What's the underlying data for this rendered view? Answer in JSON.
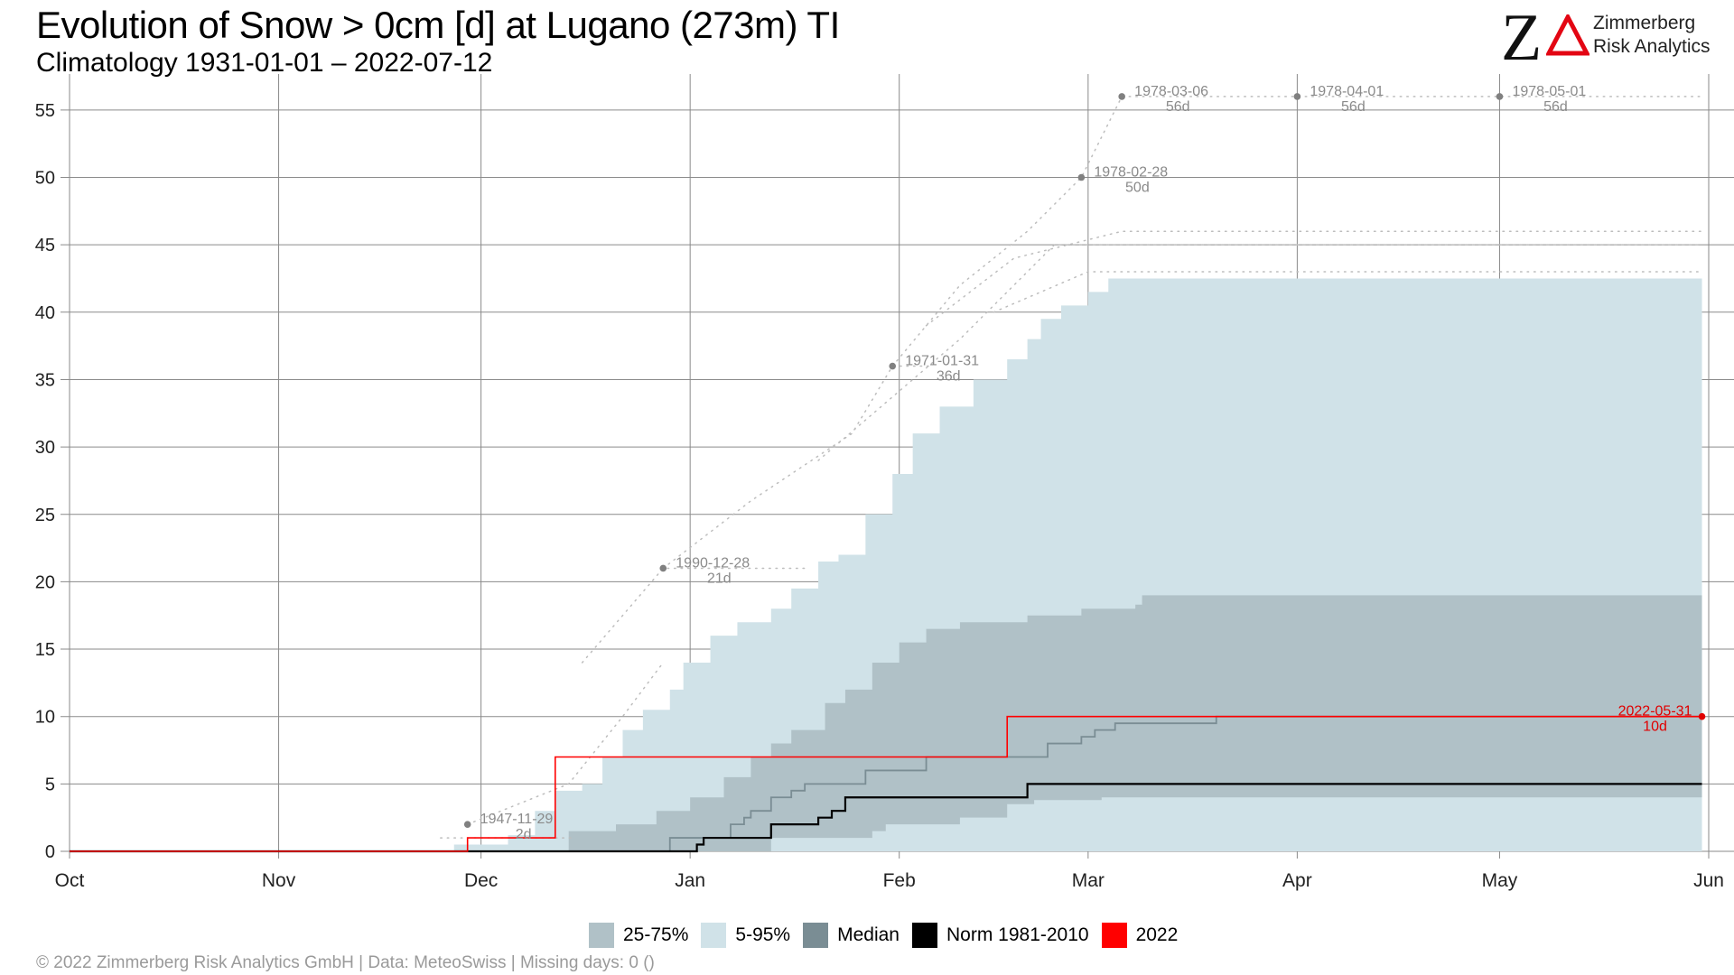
{
  "title": "Evolution of Snow > 0cm [d] at Lugano (273m) TI",
  "subtitle": "Climatology 1931-01-01 – 2022-07-12",
  "logo": {
    "name_line1": "Zimmerberg",
    "name_line2": "Risk Analytics",
    "letter": "Z",
    "accent_color": "#e30613"
  },
  "footer": "©  2022 Zimmerberg Risk Analytics GmbH | Data: MeteoSwiss | Missing days: 0 ()",
  "legend": [
    {
      "label": "25-75%",
      "color": "#b0c1c7"
    },
    {
      "label": "5-95%",
      "color": "#d0e2e8"
    },
    {
      "label": "Median",
      "color": "#7a8d94"
    },
    {
      "label": "Norm 1981-2010",
      "color": "#000000"
    },
    {
      "label": "2022",
      "color": "#ff0000"
    }
  ],
  "chart_data": {
    "type": "area",
    "x_axis": {
      "type": "date",
      "range": [
        "2021-10-01",
        "2022-06-01"
      ],
      "tick_labels": [
        "Oct",
        "Nov",
        "Dec",
        "Jan",
        "Feb",
        "Mar",
        "Apr",
        "May",
        "Jun"
      ],
      "tick_dates": [
        "2021-10-01",
        "2021-11-01",
        "2021-12-01",
        "2022-01-01",
        "2022-02-01",
        "2022-03-01",
        "2022-04-01",
        "2022-05-01",
        "2022-06-01"
      ]
    },
    "y_axis": {
      "range": [
        0,
        57
      ],
      "ticks": [
        0,
        5,
        10,
        15,
        20,
        25,
        30,
        35,
        40,
        45,
        50,
        55
      ]
    },
    "grid": true,
    "legend_position": "bottom",
    "series": [
      {
        "name": "5-95%",
        "kind": "band",
        "color": "#d0e2e8",
        "lower": [
          [
            "2021-10-01",
            0
          ],
          [
            "2022-05-31",
            0
          ]
        ],
        "upper": [
          [
            "2021-10-01",
            0
          ],
          [
            "2021-11-26",
            0
          ],
          [
            "2021-11-27",
            0.5
          ],
          [
            "2021-12-05",
            1.2
          ],
          [
            "2021-12-09",
            3
          ],
          [
            "2021-12-12",
            4.5
          ],
          [
            "2021-12-16",
            5
          ],
          [
            "2021-12-19",
            7
          ],
          [
            "2021-12-22",
            9
          ],
          [
            "2021-12-25",
            10.5
          ],
          [
            "2021-12-29",
            12
          ],
          [
            "2021-12-31",
            14
          ],
          [
            "2022-01-04",
            16
          ],
          [
            "2022-01-08",
            17
          ],
          [
            "2022-01-13",
            18
          ],
          [
            "2022-01-16",
            19.5
          ],
          [
            "2022-01-20",
            21.5
          ],
          [
            "2022-01-23",
            22
          ],
          [
            "2022-01-27",
            25
          ],
          [
            "2022-01-31",
            28
          ],
          [
            "2022-02-03",
            31
          ],
          [
            "2022-02-07",
            33
          ],
          [
            "2022-02-12",
            35
          ],
          [
            "2022-02-17",
            36.5
          ],
          [
            "2022-02-20",
            38
          ],
          [
            "2022-02-22",
            39.5
          ],
          [
            "2022-02-25",
            40.5
          ],
          [
            "2022-03-01",
            41.5
          ],
          [
            "2022-03-04",
            42.5
          ],
          [
            "2022-05-31",
            42.5
          ]
        ]
      },
      {
        "name": "25-75%",
        "kind": "band",
        "color": "#b0c1c7",
        "lower": [
          [
            "2021-10-01",
            0
          ],
          [
            "2022-01-13",
            0
          ],
          [
            "2022-01-14",
            1
          ],
          [
            "2022-01-28",
            1
          ],
          [
            "2022-01-30",
            1.5
          ],
          [
            "2022-02-10",
            2
          ],
          [
            "2022-02-17",
            2.5
          ],
          [
            "2022-02-21",
            3.5
          ],
          [
            "2022-03-03",
            3.8
          ],
          [
            "2022-03-17",
            4
          ],
          [
            "2022-05-31",
            4
          ]
        ],
        "upper": [
          [
            "2021-10-01",
            0
          ],
          [
            "2021-12-13",
            0
          ],
          [
            "2021-12-14",
            1.5
          ],
          [
            "2021-12-21",
            2
          ],
          [
            "2021-12-27",
            3
          ],
          [
            "2022-01-01",
            4
          ],
          [
            "2022-01-06",
            5.5
          ],
          [
            "2022-01-10",
            7
          ],
          [
            "2022-01-13",
            8
          ],
          [
            "2022-01-16",
            9
          ],
          [
            "2022-01-21",
            11
          ],
          [
            "2022-01-24",
            12
          ],
          [
            "2022-01-28",
            14
          ],
          [
            "2022-02-01",
            15.5
          ],
          [
            "2022-02-05",
            16.5
          ],
          [
            "2022-02-10",
            17
          ],
          [
            "2022-02-20",
            17.5
          ],
          [
            "2022-02-28",
            18
          ],
          [
            "2022-03-08",
            18.3
          ],
          [
            "2022-03-09",
            19
          ],
          [
            "2022-05-31",
            19
          ]
        ]
      },
      {
        "name": "Median",
        "kind": "line",
        "color": "#7a8d94",
        "points": [
          [
            "2021-10-01",
            0
          ],
          [
            "2021-12-28",
            0
          ],
          [
            "2021-12-29",
            1
          ],
          [
            "2022-01-05",
            1
          ],
          [
            "2022-01-07",
            2
          ],
          [
            "2022-01-09",
            2.5
          ],
          [
            "2022-01-10",
            3
          ],
          [
            "2022-01-13",
            4
          ],
          [
            "2022-01-16",
            4.5
          ],
          [
            "2022-01-18",
            5
          ],
          [
            "2022-01-25",
            5
          ],
          [
            "2022-01-27",
            6
          ],
          [
            "2022-02-03",
            6
          ],
          [
            "2022-02-05",
            7
          ],
          [
            "2022-02-20",
            7
          ],
          [
            "2022-02-23",
            8
          ],
          [
            "2022-02-28",
            8.5
          ],
          [
            "2022-03-02",
            9
          ],
          [
            "2022-03-05",
            9.5
          ],
          [
            "2022-03-19",
            9.5
          ],
          [
            "2022-03-20",
            10
          ],
          [
            "2022-05-31",
            10
          ]
        ]
      },
      {
        "name": "Norm 1981-2010",
        "kind": "line",
        "color": "#000000",
        "points": [
          [
            "2021-10-01",
            0
          ],
          [
            "2022-01-01",
            0
          ],
          [
            "2022-01-02",
            0.5
          ],
          [
            "2022-01-03",
            1
          ],
          [
            "2022-01-12",
            1
          ],
          [
            "2022-01-13",
            2
          ],
          [
            "2022-01-18",
            2
          ],
          [
            "2022-01-20",
            2.5
          ],
          [
            "2022-01-22",
            3
          ],
          [
            "2022-01-24",
            4
          ],
          [
            "2022-02-17",
            4
          ],
          [
            "2022-02-20",
            5
          ],
          [
            "2022-05-31",
            5
          ]
        ]
      },
      {
        "name": "2022",
        "kind": "line",
        "color": "#ff0000",
        "points": [
          [
            "2021-10-01",
            0
          ],
          [
            "2021-11-28",
            0
          ],
          [
            "2021-11-29",
            1
          ],
          [
            "2021-12-07",
            1
          ],
          [
            "2021-12-12",
            7
          ],
          [
            "2022-02-14",
            7
          ],
          [
            "2022-02-17",
            10
          ],
          [
            "2022-05-31",
            10
          ]
        ]
      }
    ],
    "record_traces": [
      {
        "points": [
          [
            "2021-11-25",
            1
          ],
          [
            "2021-12-15",
            1
          ]
        ]
      },
      {
        "points": [
          [
            "2021-11-29",
            2
          ],
          [
            "2021-12-14",
            5
          ],
          [
            "2021-12-22",
            10
          ],
          [
            "2021-12-28",
            14
          ]
        ]
      },
      {
        "points": [
          [
            "2021-12-16",
            14
          ],
          [
            "2021-12-28",
            21
          ],
          [
            "2022-01-18",
            21
          ]
        ]
      },
      {
        "points": [
          [
            "2021-12-28",
            21
          ],
          [
            "2022-01-10",
            26
          ],
          [
            "2022-01-25",
            31
          ],
          [
            "2022-01-31",
            36
          ],
          [
            "2022-02-06",
            36
          ]
        ]
      },
      {
        "points": [
          [
            "2022-01-31",
            36
          ],
          [
            "2022-02-10",
            42
          ],
          [
            "2022-02-20",
            46
          ],
          [
            "2022-02-28",
            50
          ],
          [
            "2022-03-06",
            56
          ],
          [
            "2022-05-31",
            56
          ]
        ]
      },
      {
        "points": [
          [
            "2022-01-20",
            29
          ],
          [
            "2022-02-10",
            38
          ],
          [
            "2022-02-24",
            45
          ],
          [
            "2022-05-31",
            45
          ]
        ]
      },
      {
        "points": [
          [
            "2022-02-05",
            39
          ],
          [
            "2022-02-18",
            44
          ],
          [
            "2022-03-06",
            46
          ],
          [
            "2022-05-31",
            46
          ]
        ]
      },
      {
        "points": [
          [
            "2022-02-15",
            40
          ],
          [
            "2022-03-01",
            43
          ],
          [
            "2022-05-31",
            43
          ]
        ]
      }
    ],
    "annotations": [
      {
        "date": "1947-11-29",
        "days": "2d",
        "x": "2021-11-29",
        "y": 2
      },
      {
        "date": "1990-12-28",
        "days": "21d",
        "x": "2021-12-28",
        "y": 21
      },
      {
        "date": "1971-01-31",
        "days": "36d",
        "x": "2022-01-31",
        "y": 36
      },
      {
        "date": "1978-02-28",
        "days": "50d",
        "x": "2022-02-28",
        "y": 50
      },
      {
        "date": "1978-03-06",
        "days": "56d",
        "x": "2022-03-06",
        "y": 56
      },
      {
        "date": "1978-04-01",
        "days": "56d",
        "x": "2022-04-01",
        "y": 56
      },
      {
        "date": "1978-05-01",
        "days": "56d",
        "x": "2022-05-01",
        "y": 56
      },
      {
        "date": "2022-05-31",
        "days": "10d",
        "x": "2022-05-31",
        "y": 10,
        "highlight": true
      }
    ]
  }
}
